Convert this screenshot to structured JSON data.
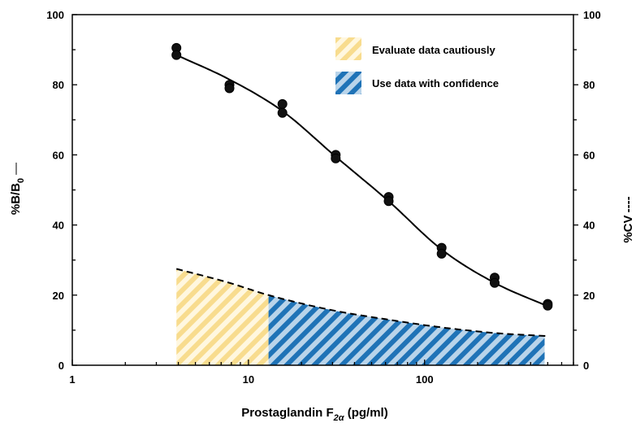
{
  "chart_data": {
    "type": "scatter",
    "xlabel": {
      "main": "Prostaglandin F",
      "sub": "2α",
      "suffix": " (pg/ml)"
    },
    "ylabel_left": {
      "main": "%B/B",
      "sub": "0",
      "marker": "—"
    },
    "ylabel_right": {
      "main": "%CV",
      "marker": "----"
    },
    "x_scale": "log",
    "xlim": [
      1,
      700
    ],
    "ylim": [
      0,
      100
    ],
    "x_ticks": [
      1,
      10,
      100
    ],
    "x_tick_labels": [
      "1",
      "10",
      "100"
    ],
    "y_ticks": [
      0,
      20,
      40,
      60,
      80,
      100
    ],
    "y_tick_labels": [
      "0",
      "20",
      "40",
      "60",
      "80",
      "100"
    ],
    "legend": {
      "placement": "top-right",
      "entries": [
        {
          "label": "Evaluate data cautiously",
          "pattern": "yellow-hatch"
        },
        {
          "label": "Use data with confidence",
          "pattern": "blue-hatch"
        }
      ]
    },
    "binding_points": [
      {
        "x": 3.9,
        "y": 90.5
      },
      {
        "x": 3.9,
        "y": 88.5
      },
      {
        "x": 7.8,
        "y": 80.0
      },
      {
        "x": 7.8,
        "y": 79.0
      },
      {
        "x": 15.6,
        "y": 74.5
      },
      {
        "x": 15.6,
        "y": 72.0
      },
      {
        "x": 31.3,
        "y": 60.0
      },
      {
        "x": 31.3,
        "y": 59.0
      },
      {
        "x": 62.5,
        "y": 48.0
      },
      {
        "x": 62.5,
        "y": 46.8
      },
      {
        "x": 125,
        "y": 33.5
      },
      {
        "x": 125,
        "y": 31.8
      },
      {
        "x": 250,
        "y": 25.0
      },
      {
        "x": 250,
        "y": 23.5
      },
      {
        "x": 500,
        "y": 17.5
      },
      {
        "x": 500,
        "y": 17.0
      }
    ],
    "binding_curve": [
      {
        "x": 3.9,
        "y": 88.5
      },
      {
        "x": 7.8,
        "y": 81.5
      },
      {
        "x": 15.6,
        "y": 72.5
      },
      {
        "x": 31.3,
        "y": 59.5
      },
      {
        "x": 62.5,
        "y": 46.8
      },
      {
        "x": 125,
        "y": 33.0
      },
      {
        "x": 250,
        "y": 23.5
      },
      {
        "x": 500,
        "y": 16.8
      }
    ],
    "cv_curve": [
      {
        "x": 3.9,
        "y": 27.5
      },
      {
        "x": 7.8,
        "y": 23.5
      },
      {
        "x": 13,
        "y": 20.0
      },
      {
        "x": 31.3,
        "y": 15.5
      },
      {
        "x": 62.5,
        "y": 13.0
      },
      {
        "x": 125,
        "y": 10.8
      },
      {
        "x": 250,
        "y": 9.2
      },
      {
        "x": 500,
        "y": 8.3
      }
    ],
    "cv_regions": [
      {
        "label": "Evaluate data cautiously",
        "x_from": 3.9,
        "x_to": 13
      },
      {
        "label": "Use data with confidence",
        "x_from": 13,
        "x_to": 480
      }
    ],
    "colors": {
      "yellow_hatch": "#f8dc8e",
      "blue_hatch": "#1f73b7",
      "blue_light": "#b9d4ea"
    }
  }
}
